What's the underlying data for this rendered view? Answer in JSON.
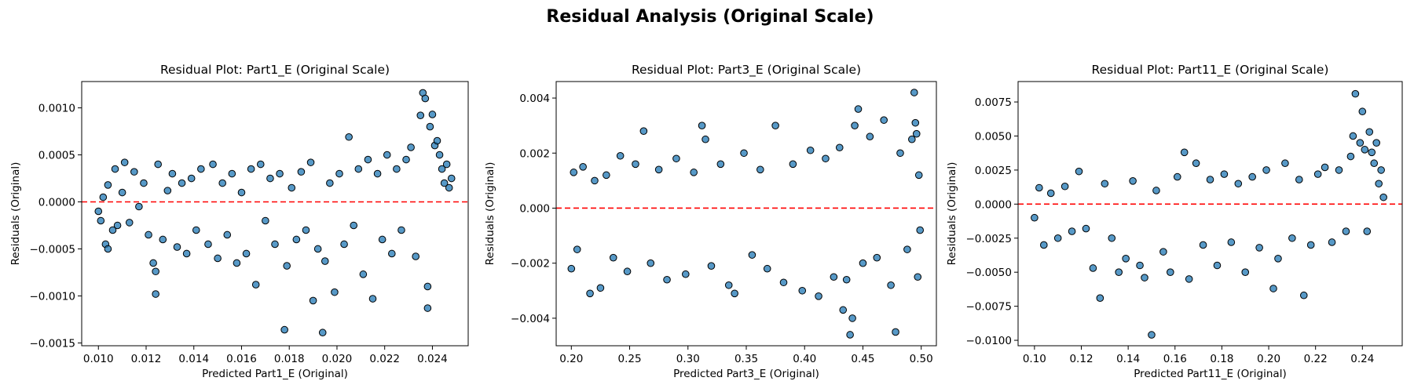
{
  "suptitle": "Residual Analysis (Original Scale)",
  "colors": {
    "marker_fill": "#1f77b4",
    "marker_edge": "#000000",
    "zero_line": "#ff0000"
  },
  "chart_data": [
    {
      "type": "scatter",
      "title": "Residual Plot: Part1_E (Original Scale)",
      "xlabel": "Predicted Part1_E (Original)",
      "ylabel": "Residuals (Original)",
      "xlim": [
        0.0093,
        0.0255
      ],
      "ylim": [
        -0.00153,
        0.00128
      ],
      "xticks": [
        0.01,
        0.012,
        0.014,
        0.016,
        0.018,
        0.02,
        0.022,
        0.024
      ],
      "xtick_labels": [
        "0.010",
        "0.012",
        "0.014",
        "0.016",
        "0.018",
        "0.020",
        "0.022",
        "0.024"
      ],
      "yticks": [
        0.001,
        0.0005,
        0.0,
        -0.0005,
        -0.001,
        -0.0015
      ],
      "ytick_labels": [
        "0.0010",
        "0.0005",
        "0.0000",
        "−0.0005",
        "−0.0010",
        "−0.0015"
      ],
      "zero_line": 0,
      "grid": false,
      "points": [
        {
          "x": 0.01,
          "y": -0.0001
        },
        {
          "x": 0.0101,
          "y": -0.0002
        },
        {
          "x": 0.0102,
          "y": 5e-05
        },
        {
          "x": 0.0103,
          "y": -0.00045
        },
        {
          "x": 0.0104,
          "y": -0.0005
        },
        {
          "x": 0.0104,
          "y": 0.00018
        },
        {
          "x": 0.0106,
          "y": -0.0003
        },
        {
          "x": 0.0107,
          "y": 0.00035
        },
        {
          "x": 0.0108,
          "y": -0.00025
        },
        {
          "x": 0.011,
          "y": 0.0001
        },
        {
          "x": 0.0111,
          "y": 0.00042
        },
        {
          "x": 0.0113,
          "y": -0.00022
        },
        {
          "x": 0.0115,
          "y": 0.00032
        },
        {
          "x": 0.0117,
          "y": -5e-05
        },
        {
          "x": 0.0119,
          "y": 0.0002
        },
        {
          "x": 0.0121,
          "y": -0.00035
        },
        {
          "x": 0.0123,
          "y": -0.00065
        },
        {
          "x": 0.0124,
          "y": -0.00074
        },
        {
          "x": 0.0124,
          "y": -0.00098
        },
        {
          "x": 0.0125,
          "y": 0.0004
        },
        {
          "x": 0.0127,
          "y": -0.0004
        },
        {
          "x": 0.0129,
          "y": 0.00012
        },
        {
          "x": 0.0131,
          "y": 0.0003
        },
        {
          "x": 0.0133,
          "y": -0.00048
        },
        {
          "x": 0.0135,
          "y": 0.0002
        },
        {
          "x": 0.0137,
          "y": -0.00055
        },
        {
          "x": 0.0139,
          "y": 0.00025
        },
        {
          "x": 0.0141,
          "y": -0.0003
        },
        {
          "x": 0.0143,
          "y": 0.00035
        },
        {
          "x": 0.0146,
          "y": -0.00045
        },
        {
          "x": 0.0148,
          "y": 0.0004
        },
        {
          "x": 0.015,
          "y": -0.0006
        },
        {
          "x": 0.0152,
          "y": 0.0002
        },
        {
          "x": 0.0154,
          "y": -0.00035
        },
        {
          "x": 0.0156,
          "y": 0.0003
        },
        {
          "x": 0.0158,
          "y": -0.00065
        },
        {
          "x": 0.016,
          "y": 0.0001
        },
        {
          "x": 0.0162,
          "y": -0.00055
        },
        {
          "x": 0.0164,
          "y": 0.00035
        },
        {
          "x": 0.0166,
          "y": -0.00088
        },
        {
          "x": 0.0168,
          "y": 0.0004
        },
        {
          "x": 0.017,
          "y": -0.0002
        },
        {
          "x": 0.0172,
          "y": 0.00025
        },
        {
          "x": 0.0174,
          "y": -0.00045
        },
        {
          "x": 0.0176,
          "y": 0.0003
        },
        {
          "x": 0.0178,
          "y": -0.00136
        },
        {
          "x": 0.0179,
          "y": -0.00068
        },
        {
          "x": 0.0181,
          "y": 0.00015
        },
        {
          "x": 0.0183,
          "y": -0.0004
        },
        {
          "x": 0.0185,
          "y": 0.00032
        },
        {
          "x": 0.0187,
          "y": -0.0003
        },
        {
          "x": 0.0189,
          "y": 0.00042
        },
        {
          "x": 0.019,
          "y": -0.00105
        },
        {
          "x": 0.0192,
          "y": -0.0005
        },
        {
          "x": 0.0194,
          "y": -0.00139
        },
        {
          "x": 0.0195,
          "y": -0.00063
        },
        {
          "x": 0.0197,
          "y": 0.0002
        },
        {
          "x": 0.0199,
          "y": -0.00096
        },
        {
          "x": 0.0201,
          "y": 0.0003
        },
        {
          "x": 0.0203,
          "y": -0.00045
        },
        {
          "x": 0.0205,
          "y": 0.00069
        },
        {
          "x": 0.0207,
          "y": -0.00025
        },
        {
          "x": 0.0209,
          "y": 0.00035
        },
        {
          "x": 0.0211,
          "y": -0.00077
        },
        {
          "x": 0.0213,
          "y": 0.00045
        },
        {
          "x": 0.0215,
          "y": -0.00103
        },
        {
          "x": 0.0217,
          "y": 0.0003
        },
        {
          "x": 0.0219,
          "y": -0.0004
        },
        {
          "x": 0.0221,
          "y": 0.0005
        },
        {
          "x": 0.0223,
          "y": -0.00055
        },
        {
          "x": 0.0225,
          "y": 0.00035
        },
        {
          "x": 0.0227,
          "y": -0.0003
        },
        {
          "x": 0.0229,
          "y": 0.00045
        },
        {
          "x": 0.0231,
          "y": 0.00058
        },
        {
          "x": 0.0233,
          "y": -0.00058
        },
        {
          "x": 0.0235,
          "y": 0.00092
        },
        {
          "x": 0.0236,
          "y": 0.00116
        },
        {
          "x": 0.0237,
          "y": 0.0011
        },
        {
          "x": 0.0238,
          "y": -0.0009
        },
        {
          "x": 0.0238,
          "y": -0.00113
        },
        {
          "x": 0.0239,
          "y": 0.0008
        },
        {
          "x": 0.024,
          "y": 0.00093
        },
        {
          "x": 0.0241,
          "y": 0.0006
        },
        {
          "x": 0.0242,
          "y": 0.00065
        },
        {
          "x": 0.0243,
          "y": 0.0005
        },
        {
          "x": 0.0244,
          "y": 0.00035
        },
        {
          "x": 0.0245,
          "y": 0.0002
        },
        {
          "x": 0.0246,
          "y": 0.0004
        },
        {
          "x": 0.0247,
          "y": 0.00015
        },
        {
          "x": 0.0248,
          "y": 0.00025
        }
      ]
    },
    {
      "type": "scatter",
      "title": "Residual Plot: Part3_E (Original Scale)",
      "xlabel": "Predicted Part3_E (Original)",
      "ylabel": "Residuals (Original)",
      "xlim": [
        0.187,
        0.513
      ],
      "ylim": [
        -0.005,
        0.0046
      ],
      "xticks": [
        0.2,
        0.25,
        0.3,
        0.35,
        0.4,
        0.45,
        0.5
      ],
      "xtick_labels": [
        "0.20",
        "0.25",
        "0.30",
        "0.35",
        "0.40",
        "0.45",
        "0.50"
      ],
      "yticks": [
        0.004,
        0.002,
        0.0,
        -0.002,
        -0.004
      ],
      "ytick_labels": [
        "0.004",
        "0.002",
        "0.000",
        "−0.002",
        "−0.004"
      ],
      "zero_line": 0,
      "grid": false,
      "points": [
        {
          "x": 0.2,
          "y": -0.0022
        },
        {
          "x": 0.202,
          "y": 0.0013
        },
        {
          "x": 0.205,
          "y": -0.0015
        },
        {
          "x": 0.21,
          "y": 0.0015
        },
        {
          "x": 0.216,
          "y": -0.0031
        },
        {
          "x": 0.22,
          "y": 0.001
        },
        {
          "x": 0.225,
          "y": -0.0029
        },
        {
          "x": 0.23,
          "y": 0.0012
        },
        {
          "x": 0.236,
          "y": -0.0018
        },
        {
          "x": 0.242,
          "y": 0.0019
        },
        {
          "x": 0.248,
          "y": -0.0023
        },
        {
          "x": 0.255,
          "y": 0.0016
        },
        {
          "x": 0.262,
          "y": 0.0028
        },
        {
          "x": 0.268,
          "y": -0.002
        },
        {
          "x": 0.275,
          "y": 0.0014
        },
        {
          "x": 0.282,
          "y": -0.0026
        },
        {
          "x": 0.29,
          "y": 0.0018
        },
        {
          "x": 0.298,
          "y": -0.0024
        },
        {
          "x": 0.305,
          "y": 0.0013
        },
        {
          "x": 0.312,
          "y": 0.003
        },
        {
          "x": 0.315,
          "y": 0.0025
        },
        {
          "x": 0.32,
          "y": -0.0021
        },
        {
          "x": 0.328,
          "y": 0.0016
        },
        {
          "x": 0.335,
          "y": -0.0028
        },
        {
          "x": 0.34,
          "y": -0.0031
        },
        {
          "x": 0.348,
          "y": 0.002
        },
        {
          "x": 0.355,
          "y": -0.0017
        },
        {
          "x": 0.362,
          "y": 0.0014
        },
        {
          "x": 0.368,
          "y": -0.0022
        },
        {
          "x": 0.375,
          "y": 0.003
        },
        {
          "x": 0.382,
          "y": -0.0027
        },
        {
          "x": 0.39,
          "y": 0.0016
        },
        {
          "x": 0.398,
          "y": -0.003
        },
        {
          "x": 0.405,
          "y": 0.0021
        },
        {
          "x": 0.412,
          "y": -0.0032
        },
        {
          "x": 0.418,
          "y": 0.0018
        },
        {
          "x": 0.425,
          "y": -0.0025
        },
        {
          "x": 0.43,
          "y": 0.0022
        },
        {
          "x": 0.433,
          "y": -0.0037
        },
        {
          "x": 0.436,
          "y": -0.0026
        },
        {
          "x": 0.439,
          "y": -0.0046
        },
        {
          "x": 0.441,
          "y": -0.004
        },
        {
          "x": 0.443,
          "y": 0.003
        },
        {
          "x": 0.446,
          "y": 0.0036
        },
        {
          "x": 0.45,
          "y": -0.002
        },
        {
          "x": 0.456,
          "y": 0.0026
        },
        {
          "x": 0.462,
          "y": -0.0018
        },
        {
          "x": 0.468,
          "y": 0.0032
        },
        {
          "x": 0.474,
          "y": -0.0028
        },
        {
          "x": 0.478,
          "y": -0.0045
        },
        {
          "x": 0.482,
          "y": 0.002
        },
        {
          "x": 0.488,
          "y": -0.0015
        },
        {
          "x": 0.492,
          "y": 0.0025
        },
        {
          "x": 0.494,
          "y": 0.0042
        },
        {
          "x": 0.495,
          "y": 0.0031
        },
        {
          "x": 0.496,
          "y": 0.0027
        },
        {
          "x": 0.497,
          "y": -0.0025
        },
        {
          "x": 0.498,
          "y": 0.0012
        },
        {
          "x": 0.499,
          "y": -0.0008
        }
      ]
    },
    {
      "type": "scatter",
      "title": "Residual Plot: Part11_E (Original Scale)",
      "xlabel": "Predicted Part11_E (Original)",
      "ylabel": "Residuals (Original)",
      "xlim": [
        0.093,
        0.257
      ],
      "ylim": [
        -0.0104,
        0.009
      ],
      "xticks": [
        0.1,
        0.12,
        0.14,
        0.16,
        0.18,
        0.2,
        0.22,
        0.24
      ],
      "xtick_labels": [
        "0.10",
        "0.12",
        "0.14",
        "0.16",
        "0.18",
        "0.20",
        "0.22",
        "0.24"
      ],
      "yticks": [
        0.0075,
        0.005,
        0.0025,
        0.0,
        -0.0025,
        -0.005,
        -0.0075,
        -0.01
      ],
      "ytick_labels": [
        "0.0075",
        "0.0050",
        "0.0025",
        "0.0000",
        "−0.0025",
        "−0.0050",
        "−0.0075",
        "−0.0100"
      ],
      "zero_line": 0,
      "grid": false,
      "points": [
        {
          "x": 0.1,
          "y": -0.001
        },
        {
          "x": 0.102,
          "y": 0.0012
        },
        {
          "x": 0.104,
          "y": -0.003
        },
        {
          "x": 0.107,
          "y": 0.0008
        },
        {
          "x": 0.11,
          "y": -0.0025
        },
        {
          "x": 0.113,
          "y": 0.0013
        },
        {
          "x": 0.116,
          "y": -0.002
        },
        {
          "x": 0.119,
          "y": 0.0024
        },
        {
          "x": 0.122,
          "y": -0.0018
        },
        {
          "x": 0.125,
          "y": -0.0047
        },
        {
          "x": 0.128,
          "y": -0.0069
        },
        {
          "x": 0.13,
          "y": 0.0015
        },
        {
          "x": 0.133,
          "y": -0.0025
        },
        {
          "x": 0.136,
          "y": -0.005
        },
        {
          "x": 0.139,
          "y": -0.004
        },
        {
          "x": 0.142,
          "y": 0.0017
        },
        {
          "x": 0.145,
          "y": -0.0045
        },
        {
          "x": 0.147,
          "y": -0.0054
        },
        {
          "x": 0.15,
          "y": -0.0096
        },
        {
          "x": 0.152,
          "y": 0.001
        },
        {
          "x": 0.155,
          "y": -0.0035
        },
        {
          "x": 0.158,
          "y": -0.005
        },
        {
          "x": 0.161,
          "y": 0.002
        },
        {
          "x": 0.164,
          "y": 0.0038
        },
        {
          "x": 0.166,
          "y": -0.0055
        },
        {
          "x": 0.169,
          "y": 0.003
        },
        {
          "x": 0.172,
          "y": -0.003
        },
        {
          "x": 0.175,
          "y": 0.0018
        },
        {
          "x": 0.178,
          "y": -0.0045
        },
        {
          "x": 0.181,
          "y": 0.0022
        },
        {
          "x": 0.184,
          "y": -0.0028
        },
        {
          "x": 0.187,
          "y": 0.0015
        },
        {
          "x": 0.19,
          "y": -0.005
        },
        {
          "x": 0.193,
          "y": 0.002
        },
        {
          "x": 0.196,
          "y": -0.0032
        },
        {
          "x": 0.199,
          "y": 0.0025
        },
        {
          "x": 0.202,
          "y": -0.0062
        },
        {
          "x": 0.204,
          "y": -0.004
        },
        {
          "x": 0.207,
          "y": 0.003
        },
        {
          "x": 0.21,
          "y": -0.0025
        },
        {
          "x": 0.213,
          "y": 0.0018
        },
        {
          "x": 0.215,
          "y": -0.0067
        },
        {
          "x": 0.218,
          "y": -0.003
        },
        {
          "x": 0.221,
          "y": 0.0022
        },
        {
          "x": 0.224,
          "y": 0.0027
        },
        {
          "x": 0.227,
          "y": -0.0028
        },
        {
          "x": 0.23,
          "y": 0.0025
        },
        {
          "x": 0.233,
          "y": -0.002
        },
        {
          "x": 0.235,
          "y": 0.0035
        },
        {
          "x": 0.236,
          "y": 0.005
        },
        {
          "x": 0.237,
          "y": 0.0081
        },
        {
          "x": 0.239,
          "y": 0.0045
        },
        {
          "x": 0.24,
          "y": 0.0068
        },
        {
          "x": 0.241,
          "y": 0.004
        },
        {
          "x": 0.242,
          "y": -0.002
        },
        {
          "x": 0.243,
          "y": 0.0053
        },
        {
          "x": 0.244,
          "y": 0.0038
        },
        {
          "x": 0.245,
          "y": 0.003
        },
        {
          "x": 0.246,
          "y": 0.0045
        },
        {
          "x": 0.247,
          "y": 0.0015
        },
        {
          "x": 0.248,
          "y": 0.0025
        },
        {
          "x": 0.249,
          "y": 0.0005
        }
      ]
    }
  ]
}
